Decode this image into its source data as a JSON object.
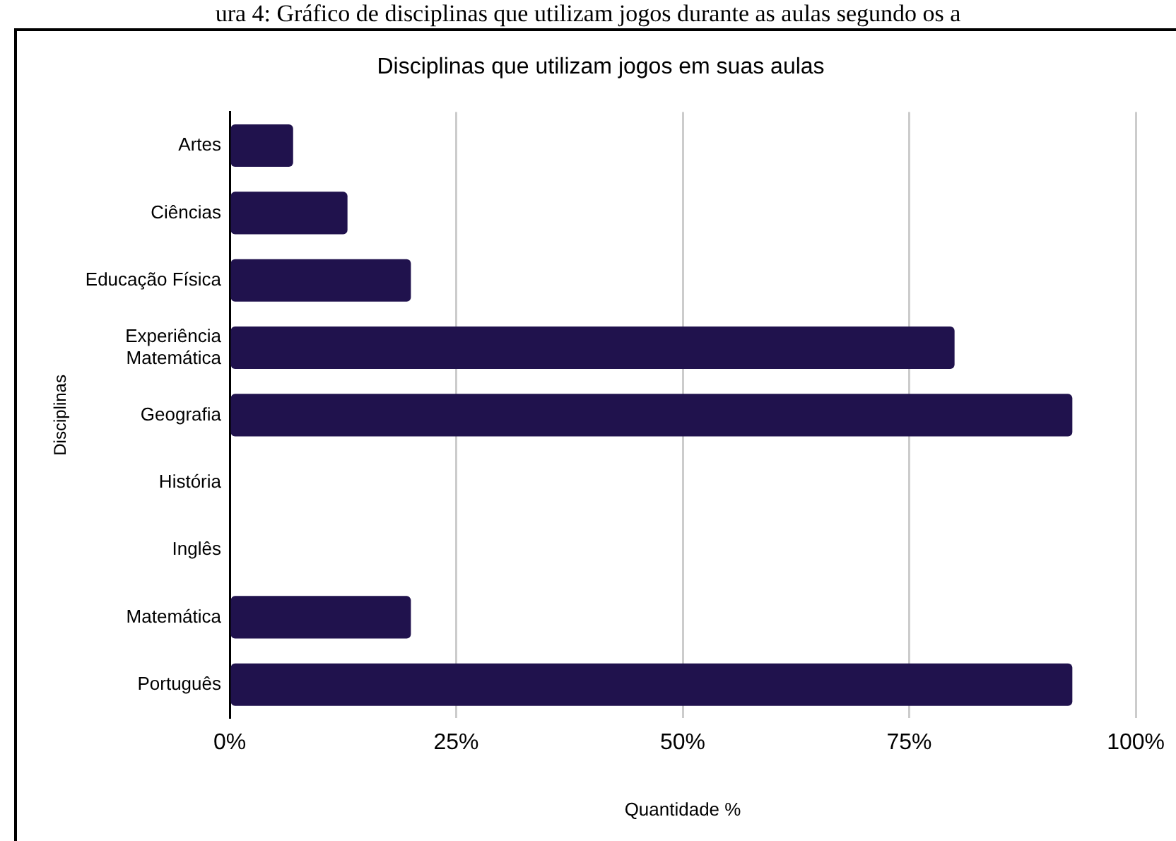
{
  "chart_data": {
    "type": "bar",
    "orientation": "horizontal",
    "title": "Disciplinas que utilizam jogos em suas aulas",
    "xlabel": "Quantidade %",
    "ylabel": "Disciplinas",
    "annotations": [
      "ura 4: Gráfico de disciplinas que utilizam jogos durante as aulas segundo os a"
    ],
    "categories": [
      "Artes",
      "Ciências",
      "Educação Física",
      "Experiência Matemática",
      "Geografia",
      "História",
      "Inglês",
      "Matemática",
      "Português"
    ],
    "values": [
      7,
      13,
      20,
      80,
      93,
      0,
      0,
      20,
      93
    ],
    "color": "#20124d",
    "xlim": [
      0,
      100
    ],
    "xticks": [
      {
        "value": 0,
        "label": "0%"
      },
      {
        "value": 25,
        "label": "25%"
      },
      {
        "value": 50,
        "label": "50%"
      },
      {
        "value": 75,
        "label": "75%"
      },
      {
        "value": 100,
        "label": "100%"
      }
    ],
    "grid": "x",
    "legend": false
  }
}
